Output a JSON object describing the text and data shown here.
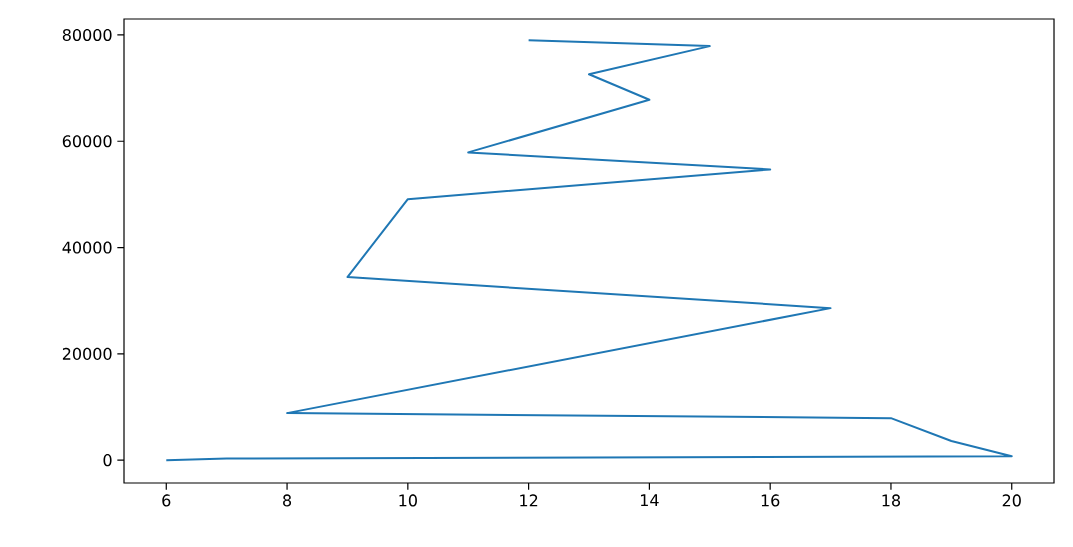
{
  "chart_data": {
    "type": "line",
    "x": [
      6,
      7,
      20,
      19,
      18,
      8,
      17,
      9,
      10,
      16,
      11,
      14,
      13,
      15,
      12
    ],
    "series": [
      {
        "color": "#1f77b4",
        "values": [
          0,
          300,
          750,
          3600,
          7900,
          8850,
          28600,
          34450,
          49100,
          54700,
          57900,
          67800,
          72600,
          77900,
          79000
        ]
      }
    ],
    "xlim": [
      5.3,
      20.7
    ],
    "ylim": [
      -4300,
      83000
    ],
    "xticks": [
      6,
      8,
      10,
      12,
      14,
      16,
      18,
      20
    ],
    "yticks": [
      0,
      20000,
      40000,
      60000,
      80000
    ]
  }
}
